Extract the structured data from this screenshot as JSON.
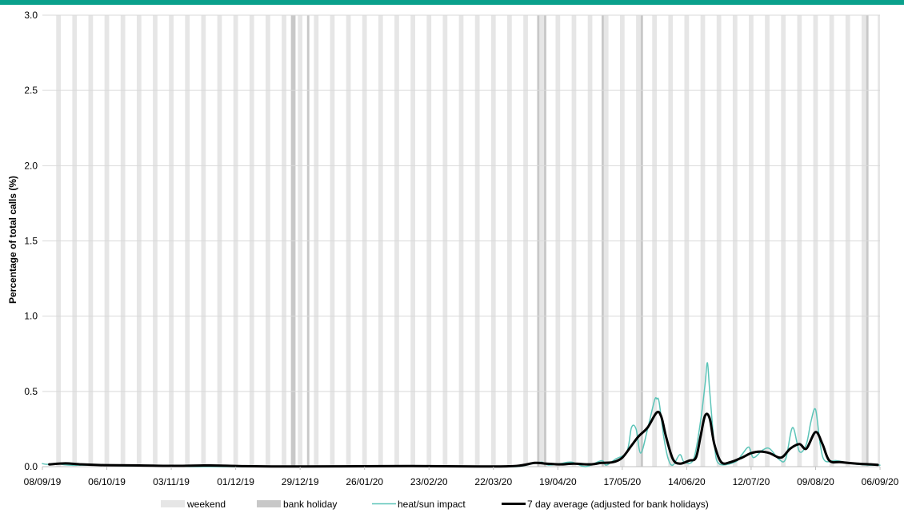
{
  "chart_data": {
    "type": "line",
    "title": "",
    "ylabel": "Percentage of total calls (%)",
    "xlabel": "",
    "x_range": [
      "2019-09-08",
      "2020-09-06"
    ],
    "ylim": [
      0,
      3.0
    ],
    "y_ticks": [
      0.0,
      0.5,
      1.0,
      1.5,
      2.0,
      2.5,
      3.0
    ],
    "y_tick_labels": [
      "0.0",
      "0.5",
      "1.0",
      "1.5",
      "2.0",
      "2.5",
      "3.0"
    ],
    "x_ticks": [
      "2019-09-08",
      "2019-10-06",
      "2019-11-03",
      "2019-12-01",
      "2019-12-29",
      "2020-01-26",
      "2020-02-23",
      "2020-03-22",
      "2020-04-19",
      "2020-05-17",
      "2020-06-14",
      "2020-07-12",
      "2020-08-09",
      "2020-09-06"
    ],
    "x_tick_labels": [
      "08/09/19",
      "06/10/19",
      "03/11/19",
      "01/12/19",
      "29/12/19",
      "26/01/20",
      "23/02/20",
      "22/03/20",
      "19/04/20",
      "17/05/20",
      "14/06/20",
      "12/07/20",
      "09/08/20",
      "06/09/20"
    ],
    "grid": true,
    "legend_position": "bottom",
    "bank_holidays": [
      "2019-12-25",
      "2019-12-26",
      "2020-01-01",
      "2020-04-10",
      "2020-04-13",
      "2020-05-08",
      "2020-05-25",
      "2020-08-31"
    ],
    "series": [
      {
        "name": "heat/sun impact",
        "color": "#5cc4b8",
        "points": [
          [
            "2019-09-08",
            0.02
          ],
          [
            "2019-09-10",
            0.015
          ],
          [
            "2019-09-14",
            0.02
          ],
          [
            "2019-09-20",
            0.01
          ],
          [
            "2019-10-01",
            0.01
          ],
          [
            "2019-10-15",
            0.005
          ],
          [
            "2019-11-01",
            0.005
          ],
          [
            "2019-11-15",
            0.0
          ],
          [
            "2019-12-15",
            0.0
          ],
          [
            "2020-01-15",
            0.0
          ],
          [
            "2020-02-15",
            0.005
          ],
          [
            "2020-03-15",
            0.0
          ],
          [
            "2020-04-01",
            0.0
          ],
          [
            "2020-04-08",
            0.02
          ],
          [
            "2020-04-12",
            0.03
          ],
          [
            "2020-04-15",
            0.01
          ],
          [
            "2020-04-20",
            0.02
          ],
          [
            "2020-04-25",
            0.03
          ],
          [
            "2020-05-01",
            0.0
          ],
          [
            "2020-05-08",
            0.04
          ],
          [
            "2020-05-10",
            0.01
          ],
          [
            "2020-05-14",
            0.05
          ],
          [
            "2020-05-19",
            0.1
          ],
          [
            "2020-05-21",
            0.26
          ],
          [
            "2020-05-23",
            0.25
          ],
          [
            "2020-05-25",
            0.09
          ],
          [
            "2020-05-28",
            0.25
          ],
          [
            "2020-05-31",
            0.44
          ],
          [
            "2020-06-01",
            0.45
          ],
          [
            "2020-06-02",
            0.43
          ],
          [
            "2020-06-04",
            0.2
          ],
          [
            "2020-06-06",
            0.05
          ],
          [
            "2020-06-08",
            0.01
          ],
          [
            "2020-06-11",
            0.08
          ],
          [
            "2020-06-13",
            0.03
          ],
          [
            "2020-06-17",
            0.05
          ],
          [
            "2020-06-20",
            0.3
          ],
          [
            "2020-06-22",
            0.55
          ],
          [
            "2020-06-23",
            0.69
          ],
          [
            "2020-06-24",
            0.5
          ],
          [
            "2020-06-26",
            0.15
          ],
          [
            "2020-06-28",
            0.02
          ],
          [
            "2020-07-05",
            0.03
          ],
          [
            "2020-07-08",
            0.08
          ],
          [
            "2020-07-11",
            0.13
          ],
          [
            "2020-07-13",
            0.06
          ],
          [
            "2020-07-17",
            0.11
          ],
          [
            "2020-07-20",
            0.12
          ],
          [
            "2020-07-24",
            0.05
          ],
          [
            "2020-07-27",
            0.05
          ],
          [
            "2020-07-30",
            0.26
          ],
          [
            "2020-08-02",
            0.1
          ],
          [
            "2020-08-05",
            0.15
          ],
          [
            "2020-08-07",
            0.3
          ],
          [
            "2020-08-09",
            0.38
          ],
          [
            "2020-08-11",
            0.15
          ],
          [
            "2020-08-13",
            0.04
          ],
          [
            "2020-08-18",
            0.04
          ],
          [
            "2020-08-25",
            0.02
          ],
          [
            "2020-09-01",
            0.01
          ],
          [
            "2020-09-06",
            0.01
          ]
        ]
      },
      {
        "name": "7 day average (adjusted for bank holidays)",
        "color": "#000000",
        "points": [
          [
            "2019-09-11",
            0.015
          ],
          [
            "2019-09-18",
            0.022
          ],
          [
            "2019-09-25",
            0.015
          ],
          [
            "2019-10-05",
            0.01
          ],
          [
            "2019-10-20",
            0.008
          ],
          [
            "2019-11-05",
            0.005
          ],
          [
            "2019-11-20",
            0.008
          ],
          [
            "2019-12-05",
            0.003
          ],
          [
            "2019-12-20",
            0.001
          ],
          [
            "2020-01-15",
            0.002
          ],
          [
            "2020-02-15",
            0.004
          ],
          [
            "2020-03-15",
            0.001
          ],
          [
            "2020-04-01",
            0.005
          ],
          [
            "2020-04-09",
            0.025
          ],
          [
            "2020-04-14",
            0.02
          ],
          [
            "2020-04-20",
            0.015
          ],
          [
            "2020-04-26",
            0.02
          ],
          [
            "2020-05-03",
            0.015
          ],
          [
            "2020-05-08",
            0.025
          ],
          [
            "2020-05-13",
            0.03
          ],
          [
            "2020-05-17",
            0.06
          ],
          [
            "2020-05-21",
            0.14
          ],
          [
            "2020-05-24",
            0.2
          ],
          [
            "2020-05-28",
            0.26
          ],
          [
            "2020-06-01",
            0.36
          ],
          [
            "2020-06-03",
            0.33
          ],
          [
            "2020-06-05",
            0.2
          ],
          [
            "2020-06-08",
            0.05
          ],
          [
            "2020-06-11",
            0.02
          ],
          [
            "2020-06-15",
            0.04
          ],
          [
            "2020-06-18",
            0.06
          ],
          [
            "2020-06-20",
            0.2
          ],
          [
            "2020-06-22",
            0.34
          ],
          [
            "2020-06-24",
            0.32
          ],
          [
            "2020-06-26",
            0.15
          ],
          [
            "2020-06-29",
            0.03
          ],
          [
            "2020-07-03",
            0.03
          ],
          [
            "2020-07-08",
            0.06
          ],
          [
            "2020-07-12",
            0.09
          ],
          [
            "2020-07-16",
            0.1
          ],
          [
            "2020-07-20",
            0.09
          ],
          [
            "2020-07-25",
            0.06
          ],
          [
            "2020-07-29",
            0.12
          ],
          [
            "2020-08-02",
            0.15
          ],
          [
            "2020-08-05",
            0.12
          ],
          [
            "2020-08-09",
            0.23
          ],
          [
            "2020-08-12",
            0.15
          ],
          [
            "2020-08-15",
            0.04
          ],
          [
            "2020-08-20",
            0.03
          ],
          [
            "2020-08-27",
            0.02
          ],
          [
            "2020-09-02",
            0.015
          ],
          [
            "2020-09-05",
            0.012
          ]
        ]
      }
    ],
    "legend": {
      "weekend": "weekend",
      "bank_holiday": "bank holiday",
      "heat": "heat/sun impact",
      "avg": "7 day average (adjusted for bank holidays)"
    },
    "colors": {
      "accent_bar": "#0aa18c",
      "weekend": "#e6e6e6",
      "bank_holiday": "#c8c8c8",
      "heat": "#5cc4b8",
      "avg": "#000000",
      "grid": "#d9d9d9"
    }
  }
}
